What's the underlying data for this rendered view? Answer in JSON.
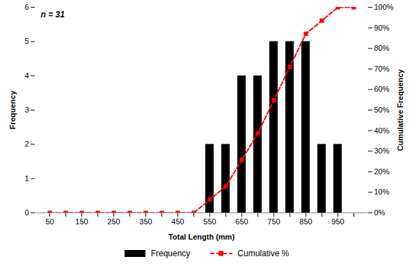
{
  "chart_data": {
    "type": "bar",
    "annotation": "n = 31",
    "xlabel": "Total Length (mm)",
    "ylabel": "Frequency",
    "y2label": "Cumulative Frequency",
    "categories": [
      "50",
      null,
      "150",
      null,
      "250",
      null,
      "350",
      null,
      "450",
      null,
      "550",
      null,
      "650",
      null,
      "750",
      null,
      "850",
      null,
      "950",
      null
    ],
    "series": [
      {
        "name": "Frequency",
        "type": "bar",
        "color": "#000000",
        "values": [
          0,
          0,
          0,
          0,
          0,
          0,
          0,
          0,
          0,
          0,
          2,
          2,
          4,
          4,
          5,
          5,
          5,
          2,
          2,
          0
        ]
      },
      {
        "name": "Cumulative %",
        "type": "line",
        "axis": "y2",
        "color": "#ff0000",
        "marker": "square",
        "line_style": "dashed",
        "values": [
          0,
          0,
          0,
          0,
          0,
          0,
          0,
          0,
          0,
          0,
          6.45,
          12.9,
          25.8,
          38.7,
          54.8,
          71,
          87.1,
          93.5,
          100,
          100
        ]
      }
    ],
    "ylim": [
      0,
      6
    ],
    "yticks": [
      0,
      1,
      2,
      3,
      4,
      5,
      6
    ],
    "y2lim": [
      0,
      100
    ],
    "y2ticks": [
      {
        "value": 0,
        "label": "0%"
      },
      {
        "value": 10,
        "label": "10%"
      },
      {
        "value": 20,
        "label": "20%"
      },
      {
        "value": 30,
        "label": "30%"
      },
      {
        "value": 40,
        "label": "40%"
      },
      {
        "value": 50,
        "label": "50%"
      },
      {
        "value": 60,
        "label": "60%"
      },
      {
        "value": 70,
        "label": "70%"
      },
      {
        "value": 80,
        "label": "80%"
      },
      {
        "value": 90,
        "label": "90%"
      },
      {
        "value": 100,
        "label": "100%"
      }
    ],
    "grid": false,
    "legend": "bottom"
  }
}
